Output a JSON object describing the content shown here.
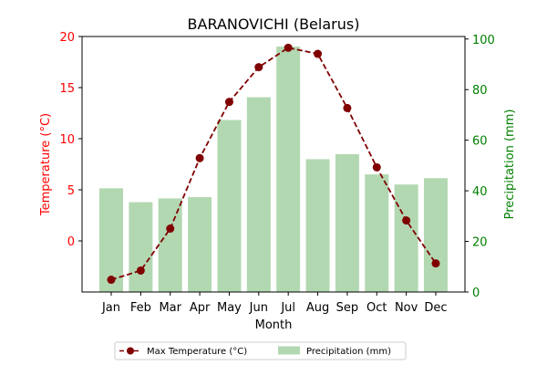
{
  "chart_data": {
    "type": "bar+line",
    "title": "BARANOVICHI (Belarus)",
    "xlabel": "Month",
    "y1label": "Temperature (°C)",
    "y2label": "Precipitation (mm)",
    "categories": [
      "Jan",
      "Feb",
      "Mar",
      "Apr",
      "May",
      "Jun",
      "Jul",
      "Aug",
      "Sep",
      "Oct",
      "Nov",
      "Dec"
    ],
    "series": [
      {
        "name": "Max Temperature (°C)",
        "type": "line",
        "axis": "left",
        "color": "#800000",
        "values": [
          -3.8,
          -2.9,
          1.2,
          8.1,
          13.6,
          17.0,
          18.9,
          18.3,
          13.0,
          7.2,
          2.0,
          -2.2
        ]
      },
      {
        "name": "Precipitation (mm)",
        "type": "bar",
        "axis": "right",
        "color": "#b2d8b2",
        "values": [
          41,
          35.5,
          37,
          37.5,
          68,
          77,
          97,
          52.5,
          54.5,
          46.5,
          42.5,
          45
        ]
      }
    ],
    "y1lim": [
      -5,
      20
    ],
    "y1ticks": [
      0,
      5,
      10,
      15,
      20
    ],
    "y1color": "#ff0000",
    "y2lim": [
      0,
      101
    ],
    "y2ticks": [
      0,
      20,
      40,
      60,
      80,
      100
    ],
    "y2color": "#008000",
    "grid": false,
    "legend_position": "bottom-center"
  }
}
